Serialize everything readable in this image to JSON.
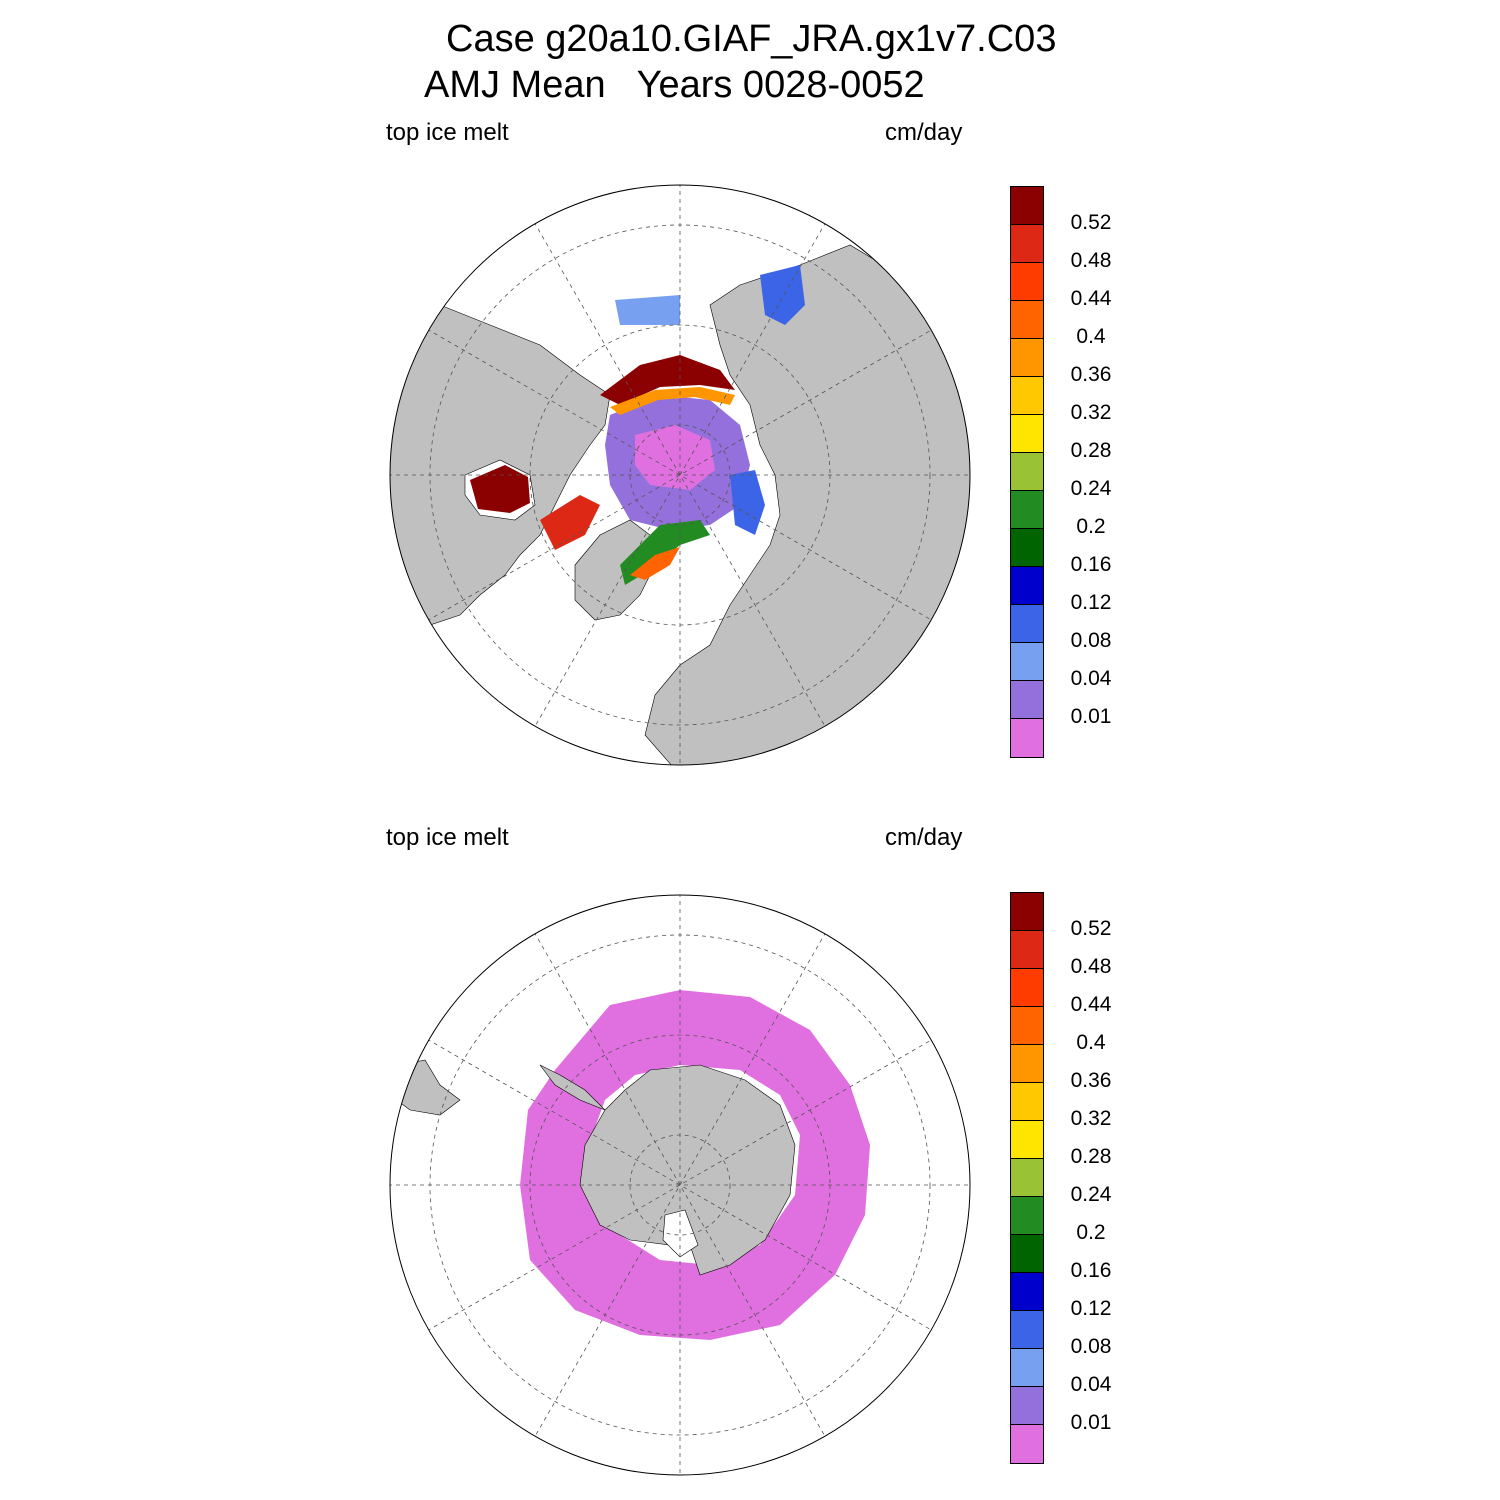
{
  "title_line1": "Case g20a10.GIAF_JRA.gx1v7.C03",
  "title_line2": "AMJ Mean   Years 0028-0052",
  "panels": [
    {
      "id": "north",
      "left_label": "top ice melt",
      "right_label": "cm/day",
      "hemisphere": "Arctic (north polar stereographic)"
    },
    {
      "id": "south",
      "left_label": "top ice melt",
      "right_label": "cm/day",
      "hemisphere": "Antarctic (south polar stereographic)"
    }
  ],
  "colorbar": {
    "levels": [
      "0.52",
      "0.48",
      "0.44",
      "0.4",
      "0.36",
      "0.32",
      "0.28",
      "0.24",
      "0.2",
      "0.16",
      "0.12",
      "0.08",
      "0.04",
      "0.01"
    ],
    "colors": [
      "#8b0000",
      "#dc2814",
      "#ff3c00",
      "#ff6400",
      "#ff9600",
      "#ffc800",
      "#ffe600",
      "#99c234",
      "#228b22",
      "#006400",
      "#0000cd",
      "#3c64e6",
      "#78a0f0",
      "#9370db",
      "#e070e0"
    ]
  },
  "map_colors": {
    "land": "#c0c0c0",
    "ocean": "#ffffff",
    "grid": "#555555"
  }
}
